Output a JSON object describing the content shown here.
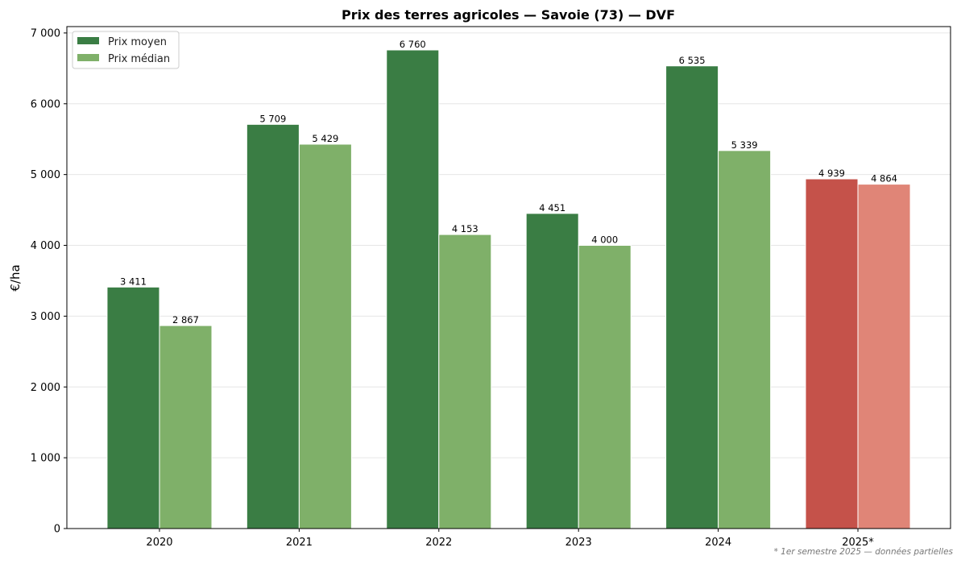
{
  "chart_data": {
    "type": "bar",
    "title": "Prix des terres agricoles — Savoie (73) — DVF",
    "xlabel": "",
    "ylabel": "€/ha",
    "categories": [
      "2020",
      "2021",
      "2022",
      "2023",
      "2024",
      "2025*"
    ],
    "series": [
      {
        "name": "Prix moyen",
        "values": [
          3411,
          5709,
          6760,
          4451,
          6535,
          4939
        ],
        "color": "#3a7d44",
        "highlight_color": "#c5524a"
      },
      {
        "name": "Prix médian",
        "values": [
          2867,
          5429,
          4153,
          4000,
          5339,
          4864
        ],
        "color": "#7fb069",
        "highlight_color": "#e08577"
      }
    ],
    "data_labels": [
      [
        "3 411",
        "5 709",
        "6 760",
        "4 451",
        "6 535",
        "4 939"
      ],
      [
        "2 867",
        "5 429",
        "4 153",
        "4 000",
        "5 339",
        "4 864"
      ]
    ],
    "highlighted_category": "2025*",
    "ylim": [
      0,
      7090
    ],
    "yticks": [
      0,
      1000,
      2000,
      3000,
      4000,
      5000,
      6000,
      7000
    ],
    "ytick_labels": [
      "0",
      "1 000",
      "2 000",
      "3 000",
      "4 000",
      "5 000",
      "6 000",
      "7 000"
    ],
    "grid": "horizontal",
    "legend": {
      "placement": "top-left",
      "entries": [
        "Prix moyen",
        "Prix médian"
      ]
    },
    "footnote": "* 1er semestre 2025 — données partielles"
  }
}
